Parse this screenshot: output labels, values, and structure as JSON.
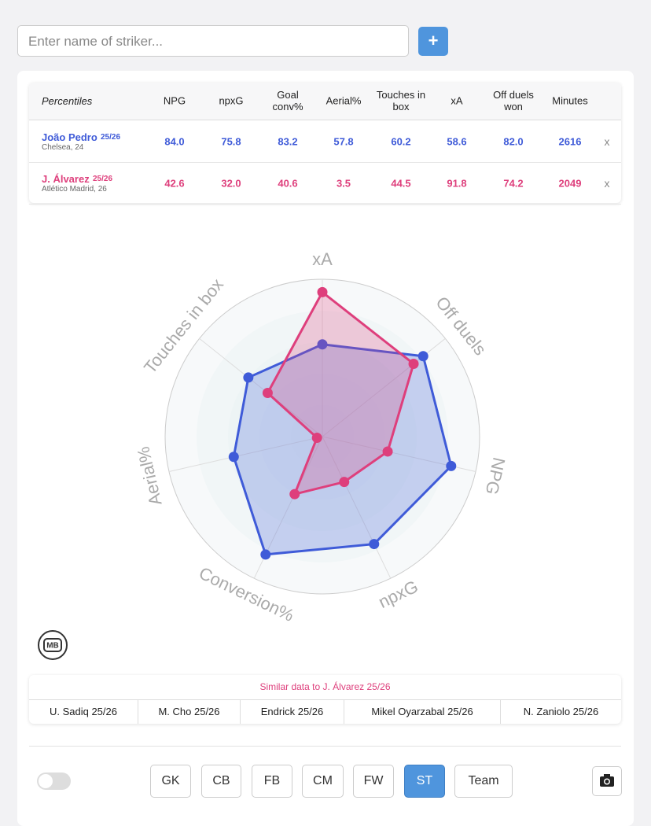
{
  "search": {
    "placeholder": "Enter name of striker...",
    "button": "+"
  },
  "table": {
    "header": [
      "Percentiles",
      "NPG",
      "npxG",
      "Goal conv%",
      "Aerial%",
      "Touches in box",
      "xA",
      "Off duels won",
      "Minutes"
    ],
    "rows": [
      {
        "name": "João Pedro",
        "season": "25/26",
        "team": "Chelsea, 24",
        "color": "#3f5bd8",
        "values": [
          "84.0",
          "75.8",
          "83.2",
          "57.8",
          "60.2",
          "58.6",
          "82.0",
          "2616"
        ],
        "remove": "x"
      },
      {
        "name": "J. Álvarez",
        "season": "25/26",
        "team": "Atlético Madrid, 26",
        "color": "#de3f7c",
        "values": [
          "42.6",
          "32.0",
          "40.6",
          "3.5",
          "44.5",
          "91.8",
          "74.2",
          "2049"
        ],
        "remove": "x"
      }
    ]
  },
  "chart_data": {
    "type": "radar",
    "categories": [
      "xA",
      "Off duels",
      "NPG",
      "npxG",
      "Conversion%",
      "Aerial%",
      "Touches in box"
    ],
    "rlim": [
      0,
      100
    ],
    "series": [
      {
        "color": "#3f5bd8",
        "values": [
          58.6,
          82.0,
          84.0,
          75.8,
          83.2,
          57.8,
          60.2
        ]
      },
      {
        "color": "#de3f7c",
        "values": [
          91.8,
          74.2,
          42.6,
          32.0,
          40.6,
          3.5,
          44.5
        ]
      }
    ]
  },
  "logo": "MB",
  "similar": {
    "title": "Similar data to J. Álvarez 25/26",
    "items": [
      "U. Sadiq 25/26",
      "M. Cho 25/26",
      "Endrick 25/26",
      "Mikel Oyarzabal 25/26",
      "N. Zaniolo 25/26"
    ]
  },
  "positions": {
    "items": [
      "GK",
      "CB",
      "FB",
      "CM",
      "FW",
      "ST",
      "Team"
    ],
    "active": "ST"
  }
}
